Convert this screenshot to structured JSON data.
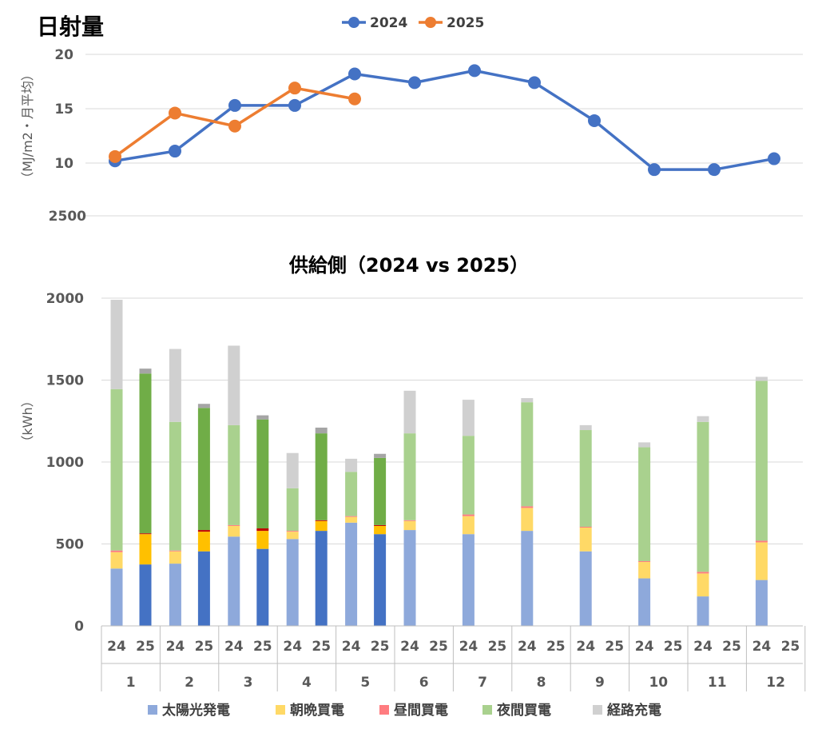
{
  "chart_data": [
    {
      "type": "line",
      "title": "日射量",
      "ylabel": "（MJ/m2・月平均）",
      "ylim": [
        10,
        20
      ],
      "y_ticks": [
        "10",
        "15",
        "20"
      ],
      "extra_tick_label": "2500",
      "grid": true,
      "legend": "top",
      "x": [
        1,
        2,
        3,
        4,
        5,
        6,
        7,
        8,
        9,
        10,
        11,
        12
      ],
      "series": [
        {
          "name": "2024",
          "color": "#4472C4",
          "values": [
            10.2,
            11.1,
            15.3,
            15.3,
            18.2,
            17.4,
            18.5,
            17.4,
            13.9,
            9.4,
            9.4,
            10.4
          ]
        },
        {
          "name": "2025",
          "color": "#ED7D31",
          "values": [
            10.6,
            14.6,
            13.4,
            16.9,
            15.9,
            null,
            null,
            null,
            null,
            null,
            null,
            null
          ]
        }
      ]
    },
    {
      "type": "bar",
      "stacked": true,
      "title": "供給側（2024 vs 2025）",
      "ylabel": "（kWh）",
      "ylim": [
        0,
        2000
      ],
      "y_ticks": [
        "0",
        "500",
        "1000",
        "1500",
        "2000"
      ],
      "grid": true,
      "legend": "bottom",
      "months": [
        "1",
        "2",
        "3",
        "4",
        "5",
        "6",
        "7",
        "8",
        "9",
        "10",
        "11",
        "12"
      ],
      "year_labels": [
        "24",
        "25"
      ],
      "series": [
        {
          "name": "太陽光発電",
          "color": "#8EA9DB",
          "color_2025": "#4472C4",
          "values_2024": [
            350,
            380,
            545,
            530,
            630,
            585,
            560,
            580,
            455,
            290,
            180,
            280
          ],
          "values_2025": [
            375,
            455,
            470,
            580,
            560,
            null,
            null,
            null,
            null,
            null,
            null,
            null
          ]
        },
        {
          "name": "朝晩買電",
          "color": "#FFD966",
          "color_2025": "#FFC000",
          "values_2024": [
            100,
            75,
            65,
            45,
            35,
            55,
            110,
            140,
            145,
            100,
            140,
            230
          ],
          "values_2025": [
            185,
            120,
            110,
            60,
            50,
            null,
            null,
            null,
            null,
            null,
            null,
            null
          ]
        },
        {
          "name": "昼間買電",
          "color": "#FF7C80",
          "color_2025": "#C00000",
          "values_2024": [
            10,
            5,
            5,
            5,
            5,
            5,
            10,
            10,
            5,
            5,
            10,
            10
          ],
          "values_2025": [
            5,
            10,
            15,
            5,
            5,
            null,
            null,
            null,
            null,
            null,
            null,
            null
          ]
        },
        {
          "name": "夜間買電",
          "color": "#A9D18E",
          "color_2025": "#70AD47",
          "values_2024": [
            985,
            785,
            610,
            260,
            270,
            530,
            480,
            635,
            590,
            695,
            915,
            975
          ],
          "values_2025": [
            975,
            745,
            665,
            530,
            410,
            null,
            null,
            null,
            null,
            null,
            null,
            null
          ]
        },
        {
          "name": "経路充電",
          "color": "#D0D0D0",
          "color_2025": "#A5A5A5",
          "values_2024": [
            545,
            445,
            485,
            215,
            80,
            260,
            220,
            25,
            30,
            30,
            35,
            25
          ],
          "values_2025": [
            30,
            25,
            25,
            35,
            25,
            null,
            null,
            null,
            null,
            null,
            null,
            null
          ]
        }
      ]
    }
  ]
}
